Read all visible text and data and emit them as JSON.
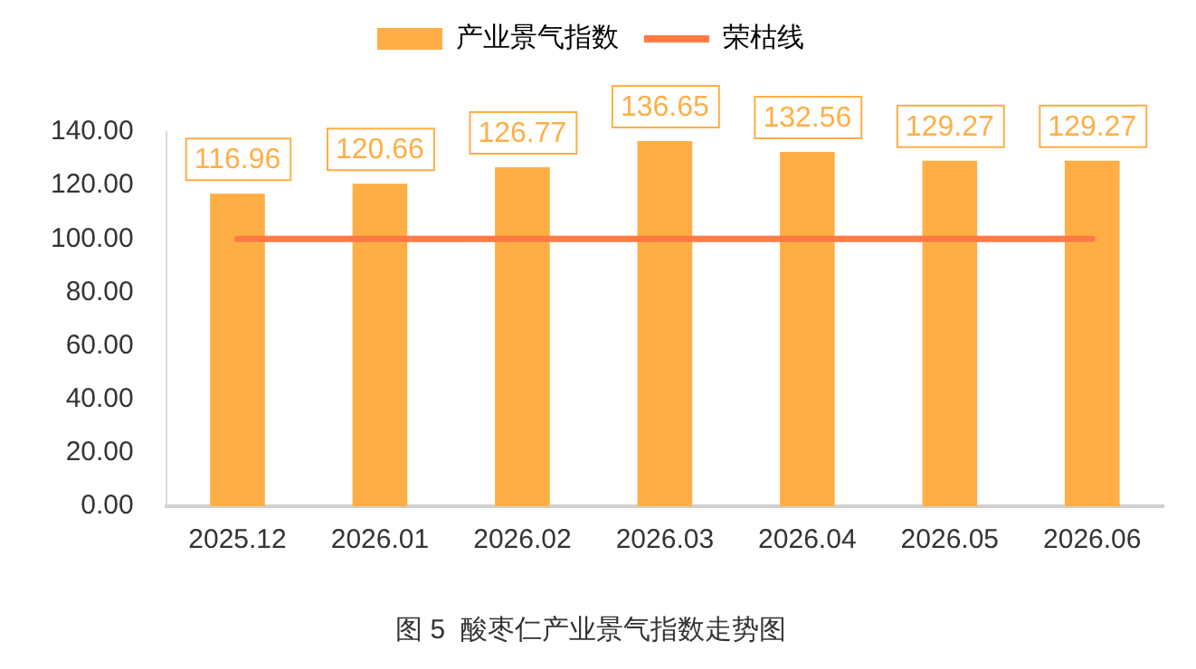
{
  "chart_data": {
    "type": "bar",
    "title": "图 5  酸枣仁产业景气指数走势图",
    "categories": [
      "2025.12",
      "2026.01",
      "2026.02",
      "2026.03",
      "2026.04",
      "2026.05",
      "2026.06"
    ],
    "series": [
      {
        "name": "产业景气指数",
        "color": "#ffae45",
        "values": [
          116.96,
          120.66,
          126.77,
          136.65,
          132.56,
          129.27,
          129.27
        ],
        "value_labels": [
          "116.96",
          "120.66",
          "126.77",
          "136.65",
          "132.56",
          "129.27",
          "129.27"
        ]
      },
      {
        "name": "荣枯线",
        "type": "line",
        "color": "#ff7a45",
        "values": [
          100,
          100,
          100,
          100,
          100,
          100,
          100
        ]
      }
    ],
    "ylim": [
      0,
      140
    ],
    "yticks": [
      {
        "value": 0,
        "label": "0.00"
      },
      {
        "value": 20,
        "label": "20.00"
      },
      {
        "value": 40,
        "label": "40.00"
      },
      {
        "value": 60,
        "label": "60.00"
      },
      {
        "value": 80,
        "label": "80.00"
      },
      {
        "value": 100,
        "label": "100.00"
      },
      {
        "value": 120,
        "label": "120.00"
      },
      {
        "value": 140,
        "label": "140.00"
      }
    ],
    "grid": false,
    "legend": "top",
    "marker": "none"
  }
}
